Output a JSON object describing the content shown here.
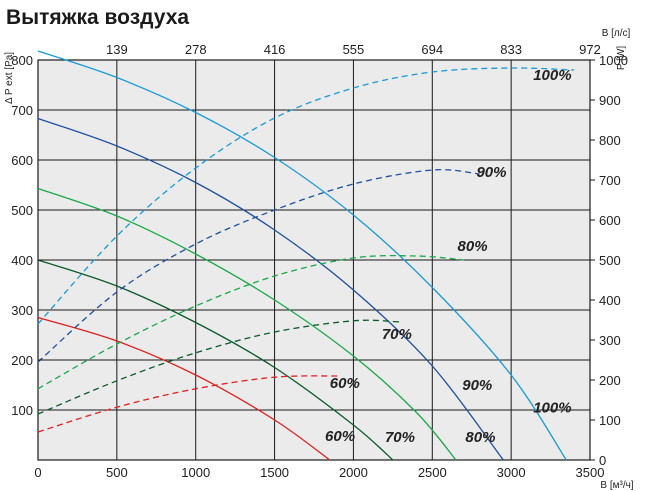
{
  "chart_data": {
    "type": "line",
    "title": "Вытяжка воздуха",
    "x_label": "В [м³/ч]",
    "x_top_label": "В [л/с]",
    "y_left_label": "Δ P ext [Pa]",
    "y_right_label": "P [W]",
    "x_range": [
      0,
      3500
    ],
    "y_left_range": [
      0,
      800
    ],
    "y_right_range": [
      0,
      1000
    ],
    "grid": true,
    "x_ticks": [
      0,
      500,
      1000,
      1500,
      2000,
      2500,
      3000,
      3500
    ],
    "x_top_ticks": [
      139,
      278,
      416,
      555,
      694,
      833,
      972
    ],
    "y_left_ticks": [
      100,
      200,
      300,
      400,
      500,
      600,
      700,
      800
    ],
    "y_right_ticks": [
      0,
      100,
      200,
      300,
      400,
      500,
      600,
      700,
      800,
      900,
      1000
    ],
    "series": [
      {
        "name": "100%",
        "kind": "pressure",
        "axis": "left",
        "color": "#1a9ad6",
        "x": [
          0,
          500,
          1000,
          1500,
          2000,
          2500,
          3000,
          3350
        ],
        "y": [
          818,
          765,
          695,
          605,
          490,
          345,
          170,
          0
        ]
      },
      {
        "name": "90%",
        "kind": "pressure",
        "axis": "left",
        "color": "#1e4fa0",
        "x": [
          0,
          500,
          1000,
          1500,
          2000,
          2500,
          2950
        ],
        "y": [
          683,
          628,
          555,
          460,
          340,
          188,
          0
        ]
      },
      {
        "name": "80%",
        "kind": "pressure",
        "axis": "left",
        "color": "#1aa84a",
        "x": [
          0,
          500,
          1000,
          1500,
          2000,
          2400,
          2650
        ],
        "y": [
          543,
          488,
          412,
          320,
          208,
          95,
          0
        ]
      },
      {
        "name": "70%",
        "kind": "pressure",
        "axis": "left",
        "color": "#0c5a2c",
        "x": [
          0,
          500,
          1000,
          1500,
          2000,
          2250
        ],
        "y": [
          400,
          348,
          275,
          185,
          70,
          0
        ]
      },
      {
        "name": "60%",
        "kind": "pressure",
        "axis": "left",
        "color": "#e02020",
        "x": [
          0,
          500,
          1000,
          1500,
          1850
        ],
        "y": [
          285,
          238,
          170,
          80,
          0
        ]
      },
      {
        "name": "100%",
        "kind": "power",
        "axis": "right",
        "color": "#1a9ad6",
        "x": [
          0,
          500,
          1000,
          1500,
          2000,
          2500,
          3000,
          3400
        ],
        "y": [
          340,
          560,
          730,
          855,
          930,
          970,
          980,
          975
        ]
      },
      {
        "name": "90%",
        "kind": "power",
        "axis": "right",
        "color": "#1e4fa0",
        "x": [
          0,
          500,
          1000,
          1500,
          2000,
          2500,
          2800
        ],
        "y": [
          245,
          420,
          540,
          625,
          690,
          725,
          715
        ]
      },
      {
        "name": "80%",
        "kind": "power",
        "axis": "right",
        "color": "#1aa84a",
        "x": [
          0,
          500,
          1000,
          1500,
          2000,
          2400,
          2700
        ],
        "y": [
          178,
          290,
          385,
          460,
          505,
          510,
          500
        ]
      },
      {
        "name": "70%",
        "kind": "power",
        "axis": "right",
        "color": "#0c5a2c",
        "x": [
          0,
          500,
          1000,
          1500,
          2000,
          2300
        ],
        "y": [
          115,
          198,
          268,
          320,
          348,
          345
        ]
      },
      {
        "name": "60%",
        "kind": "power",
        "axis": "right",
        "color": "#e02020",
        "x": [
          0,
          500,
          1000,
          1500,
          1900
        ],
        "y": [
          70,
          132,
          178,
          207,
          210
        ]
      }
    ],
    "annotations": [
      {
        "text": "100%",
        "x": 3140,
        "y_left": 770
      },
      {
        "text": "90%",
        "x": 2780,
        "y_left": 576
      },
      {
        "text": "80%",
        "x": 2660,
        "y_left": 428
      },
      {
        "text": "70%",
        "x": 2180,
        "y_left": 252
      },
      {
        "text": "60%",
        "x": 1850,
        "y_left": 154
      },
      {
        "text": "90%",
        "x": 2690,
        "y_left": 150
      },
      {
        "text": "100%",
        "x": 3140,
        "y_left": 105
      },
      {
        "text": "60%",
        "x": 1820,
        "y_left": 48
      },
      {
        "text": "70%",
        "x": 2200,
        "y_left": 46
      },
      {
        "text": "80%",
        "x": 2710,
        "y_left": 46
      }
    ]
  }
}
